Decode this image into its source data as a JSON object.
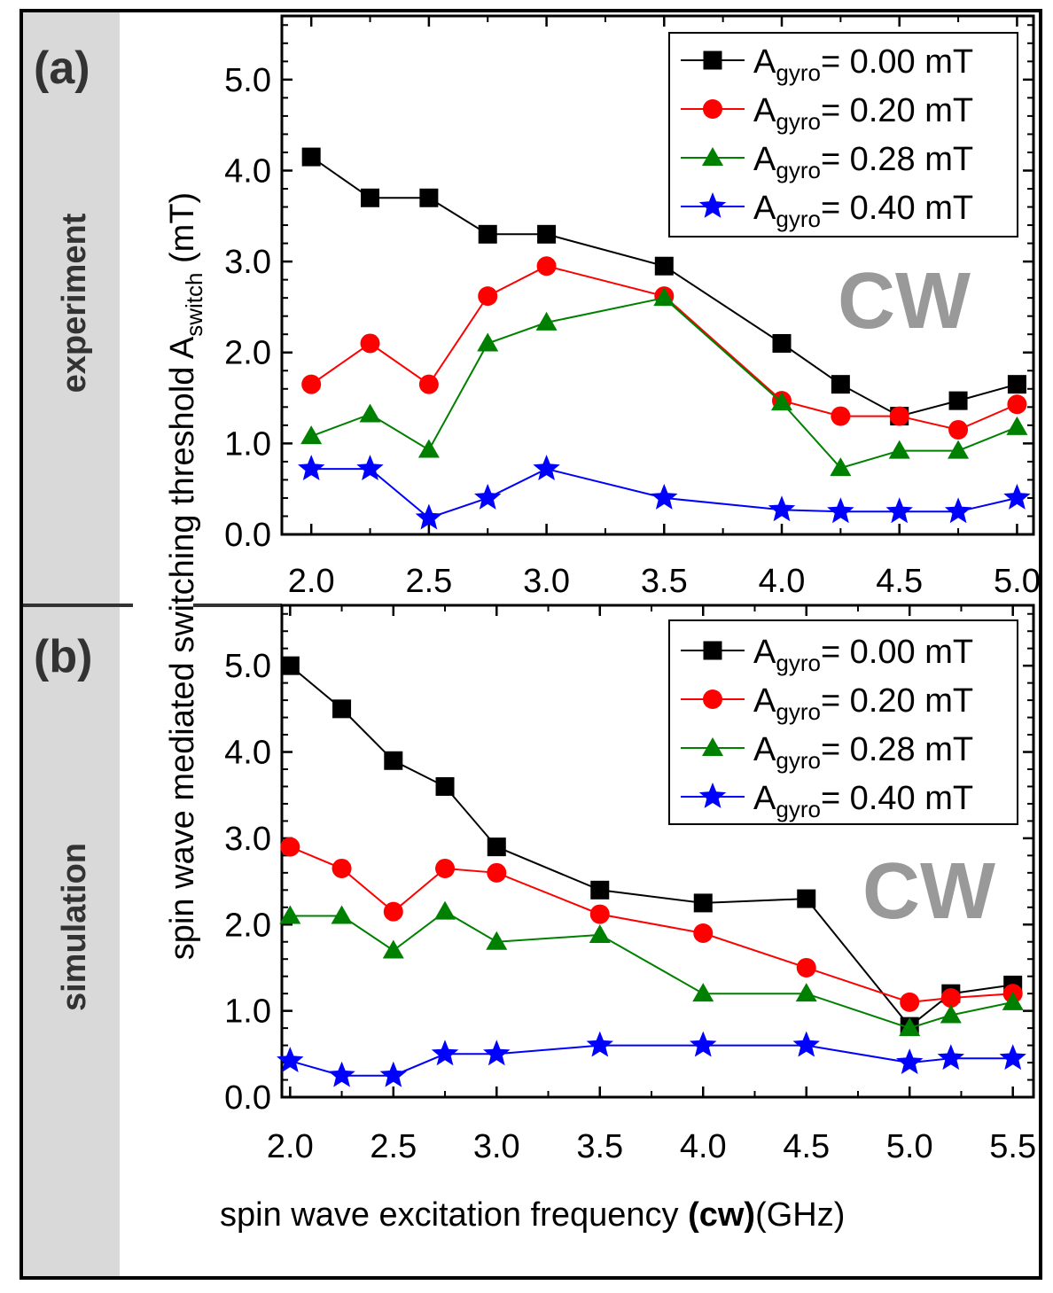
{
  "colors": {
    "series": [
      "#000000",
      "#ff0000",
      "#008000",
      "#0000ff"
    ],
    "watermark": "#999999",
    "side_band": "#d9d9d9"
  },
  "panels": {
    "a": {
      "label": "(a)",
      "side_label": "experiment",
      "watermark": "CW"
    },
    "b": {
      "label": "(b)",
      "side_label": "simulation",
      "watermark": "CW"
    }
  },
  "legend": [
    {
      "sym": "A",
      "sub": "gyro",
      "rest": "= 0.00 mT"
    },
    {
      "sym": "A",
      "sub": "gyro",
      "rest": "= 0.20 mT"
    },
    {
      "sym": "A",
      "sub": "gyro",
      "rest": "= 0.28 mT"
    },
    {
      "sym": "A",
      "sub": "gyro",
      "rest": "= 0.40 mT"
    }
  ],
  "axes": {
    "ylabel_main": "spin wave mediated switching threshold A",
    "ylabel_sub": "switch",
    "ylabel_unit": " (mT)",
    "xlabel_main": "spin wave excitation frequency ",
    "xlabel_bold": "(cw)",
    "xlabel_unit": "(GHz)"
  },
  "chart_data": [
    {
      "type": "line",
      "panel": "a",
      "title": "experiment",
      "xlabel": "spin wave excitation frequency (cw) (GHz)",
      "ylabel": "spin wave mediated switching threshold A_switch (mT)",
      "xlim": [
        1.875,
        5.07
      ],
      "ylim": [
        0,
        5.7
      ],
      "xticks": [
        2.0,
        2.5,
        3.0,
        3.5,
        4.0,
        4.5,
        5.0
      ],
      "xtick_labels": [
        "2.0",
        "2.5",
        "3.0",
        "3.5",
        "4.0",
        "4.5",
        "5.0"
      ],
      "yticks": [
        0.0,
        1.0,
        2.0,
        3.0,
        4.0,
        5.0
      ],
      "ytick_labels": [
        "0.0",
        "1.0",
        "2.0",
        "3.0",
        "4.0",
        "5.0"
      ],
      "x": [
        2.0,
        2.25,
        2.5,
        2.75,
        3.0,
        3.5,
        4.0,
        4.25,
        4.5,
        4.75,
        5.0
      ],
      "series": [
        {
          "name": "A_gyro = 0.00 mT",
          "marker": "square",
          "values": [
            4.15,
            3.7,
            3.7,
            3.3,
            3.3,
            2.95,
            2.1,
            1.65,
            1.3,
            1.47,
            1.65
          ]
        },
        {
          "name": "A_gyro = 0.20 mT",
          "marker": "circle",
          "values": [
            1.65,
            2.1,
            1.65,
            2.62,
            2.95,
            2.62,
            1.47,
            1.3,
            1.3,
            1.15,
            1.43
          ]
        },
        {
          "name": "A_gyro = 0.28 mT",
          "marker": "triangle",
          "values": [
            1.08,
            1.32,
            0.93,
            2.1,
            2.33,
            2.6,
            1.45,
            0.73,
            0.92,
            0.92,
            1.18
          ]
        },
        {
          "name": "A_gyro = 0.40 mT",
          "marker": "star",
          "values": [
            0.72,
            0.72,
            0.18,
            0.4,
            0.72,
            0.4,
            0.27,
            0.25,
            0.25,
            0.25,
            0.4
          ]
        }
      ],
      "legend_position": "top-right",
      "annotation": "CW"
    },
    {
      "type": "line",
      "panel": "b",
      "title": "simulation",
      "xlabel": "spin wave excitation frequency (cw) (GHz)",
      "ylabel": "spin wave mediated switching threshold A_switch (mT)",
      "xlim": [
        1.96,
        5.6
      ],
      "ylim": [
        0,
        5.7
      ],
      "xticks": [
        2.0,
        2.5,
        3.0,
        3.5,
        4.0,
        4.5,
        5.0,
        5.5
      ],
      "xtick_labels": [
        "2.0",
        "2.5",
        "3.0",
        "3.5",
        "4.0",
        "4.5",
        "5.0",
        "5.5"
      ],
      "yticks": [
        0.0,
        1.0,
        2.0,
        3.0,
        4.0,
        5.0
      ],
      "ytick_labels": [
        "0.0",
        "1.0",
        "2.0",
        "3.0",
        "4.0",
        "5.0"
      ],
      "series": [
        {
          "name": "A_gyro = 0.00 mT",
          "marker": "square",
          "x": [
            2.0,
            2.25,
            2.5,
            2.75,
            3.0,
            3.5,
            4.0,
            4.5,
            5.0,
            5.2,
            5.5
          ],
          "values": [
            5.0,
            4.5,
            3.9,
            3.6,
            2.9,
            2.4,
            2.25,
            2.3,
            0.82,
            1.2,
            1.3
          ]
        },
        {
          "name": "A_gyro = 0.20 mT",
          "marker": "circle",
          "x": [
            2.0,
            2.25,
            2.5,
            2.75,
            3.0,
            3.5,
            4.0,
            4.5,
            5.0,
            5.2,
            5.5
          ],
          "values": [
            2.9,
            2.65,
            2.15,
            2.65,
            2.6,
            2.12,
            1.9,
            1.5,
            1.1,
            1.15,
            1.2
          ]
        },
        {
          "name": "A_gyro = 0.28 mT",
          "marker": "triangle",
          "x": [
            2.0,
            2.25,
            2.5,
            2.75,
            3.0,
            3.5,
            4.0,
            4.5,
            5.0,
            5.2,
            5.5
          ],
          "values": [
            2.1,
            2.1,
            1.7,
            2.15,
            1.8,
            1.88,
            1.2,
            1.2,
            0.8,
            0.95,
            1.1
          ]
        },
        {
          "name": "A_gyro = 0.40 mT",
          "marker": "star",
          "x": [
            2.0,
            2.25,
            2.5,
            2.75,
            3.0,
            3.5,
            4.0,
            4.5,
            5.0,
            5.2,
            5.5
          ],
          "values": [
            0.42,
            0.25,
            0.25,
            0.5,
            0.5,
            0.6,
            0.6,
            0.6,
            0.4,
            0.45,
            0.45
          ]
        }
      ],
      "legend_position": "top-right",
      "annotation": "CW"
    }
  ]
}
